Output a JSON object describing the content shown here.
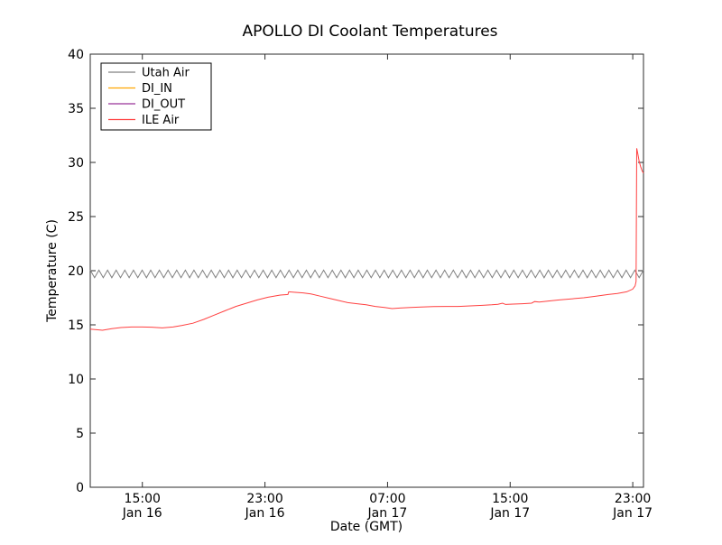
{
  "chart_data": {
    "type": "line",
    "title": "APOLLO DI Coolant Temperatures",
    "xlabel": "Date (GMT)",
    "ylabel": "Temperature (C)",
    "ylim": [
      0,
      40
    ],
    "yticks": [
      0,
      5,
      10,
      15,
      20,
      25,
      30,
      35,
      40
    ],
    "xlim_hours_from_jan16_0000": [
      11.6,
      47.7
    ],
    "xticks": [
      {
        "hour": 15,
        "time": "15:00",
        "date": "Jan 16"
      },
      {
        "hour": 23,
        "time": "23:00",
        "date": "Jan 16"
      },
      {
        "hour": 31,
        "time": "07:00",
        "date": "Jan 17"
      },
      {
        "hour": 39,
        "time": "15:00",
        "date": "Jan 17"
      },
      {
        "hour": 47,
        "time": "23:00",
        "date": "Jan 17"
      }
    ],
    "grid": false,
    "legend_position": "upper-left",
    "axis_color": "#2b2b2b",
    "series": [
      {
        "name": "Utah Air",
        "color": "#808080",
        "wave": {
          "min": 19.35,
          "max": 20.05,
          "cycles": 64,
          "x_start": 11.6,
          "x_end": 47.7
        },
        "points": []
      },
      {
        "name": "DI_IN",
        "color": "#ffa500",
        "points": []
      },
      {
        "name": "DI_OUT",
        "color": "#993399",
        "points": []
      },
      {
        "name": "ILE Air",
        "color": "#ff4040",
        "points": [
          [
            11.6,
            14.6
          ],
          [
            12.0,
            14.55
          ],
          [
            12.4,
            14.5
          ],
          [
            13.0,
            14.65
          ],
          [
            13.6,
            14.75
          ],
          [
            14.3,
            14.8
          ],
          [
            15.0,
            14.8
          ],
          [
            15.6,
            14.78
          ],
          [
            16.3,
            14.72
          ],
          [
            17.0,
            14.8
          ],
          [
            17.6,
            14.95
          ],
          [
            18.3,
            15.15
          ],
          [
            19.0,
            15.5
          ],
          [
            19.7,
            15.9
          ],
          [
            20.4,
            16.3
          ],
          [
            21.1,
            16.7
          ],
          [
            21.8,
            17.0
          ],
          [
            22.5,
            17.3
          ],
          [
            23.2,
            17.55
          ],
          [
            24.0,
            17.75
          ],
          [
            24.5,
            17.8
          ],
          [
            24.55,
            18.05
          ],
          [
            25.0,
            18.0
          ],
          [
            25.5,
            17.95
          ],
          [
            26.0,
            17.85
          ],
          [
            26.6,
            17.65
          ],
          [
            27.2,
            17.45
          ],
          [
            27.8,
            17.25
          ],
          [
            28.4,
            17.05
          ],
          [
            29.0,
            16.95
          ],
          [
            29.6,
            16.85
          ],
          [
            30.2,
            16.7
          ],
          [
            30.8,
            16.6
          ],
          [
            31.3,
            16.5
          ],
          [
            31.8,
            16.55
          ],
          [
            32.5,
            16.6
          ],
          [
            33.2,
            16.65
          ],
          [
            34.0,
            16.68
          ],
          [
            34.8,
            16.7
          ],
          [
            35.6,
            16.7
          ],
          [
            36.4,
            16.75
          ],
          [
            37.2,
            16.8
          ],
          [
            37.8,
            16.85
          ],
          [
            38.2,
            16.9
          ],
          [
            38.5,
            17.0
          ],
          [
            38.7,
            16.88
          ],
          [
            39.2,
            16.92
          ],
          [
            39.8,
            16.95
          ],
          [
            40.4,
            17.0
          ],
          [
            40.6,
            17.15
          ],
          [
            40.9,
            17.1
          ],
          [
            41.5,
            17.2
          ],
          [
            42.2,
            17.3
          ],
          [
            43.0,
            17.4
          ],
          [
            43.8,
            17.5
          ],
          [
            44.6,
            17.65
          ],
          [
            45.4,
            17.8
          ],
          [
            46.0,
            17.9
          ],
          [
            46.6,
            18.05
          ],
          [
            47.0,
            18.3
          ],
          [
            47.15,
            18.6
          ],
          [
            47.22,
            19.0
          ],
          [
            47.26,
            31.3
          ],
          [
            47.32,
            30.9
          ],
          [
            47.42,
            30.1
          ],
          [
            47.52,
            29.6
          ],
          [
            47.62,
            29.2
          ],
          [
            47.7,
            29.0
          ]
        ]
      }
    ]
  }
}
